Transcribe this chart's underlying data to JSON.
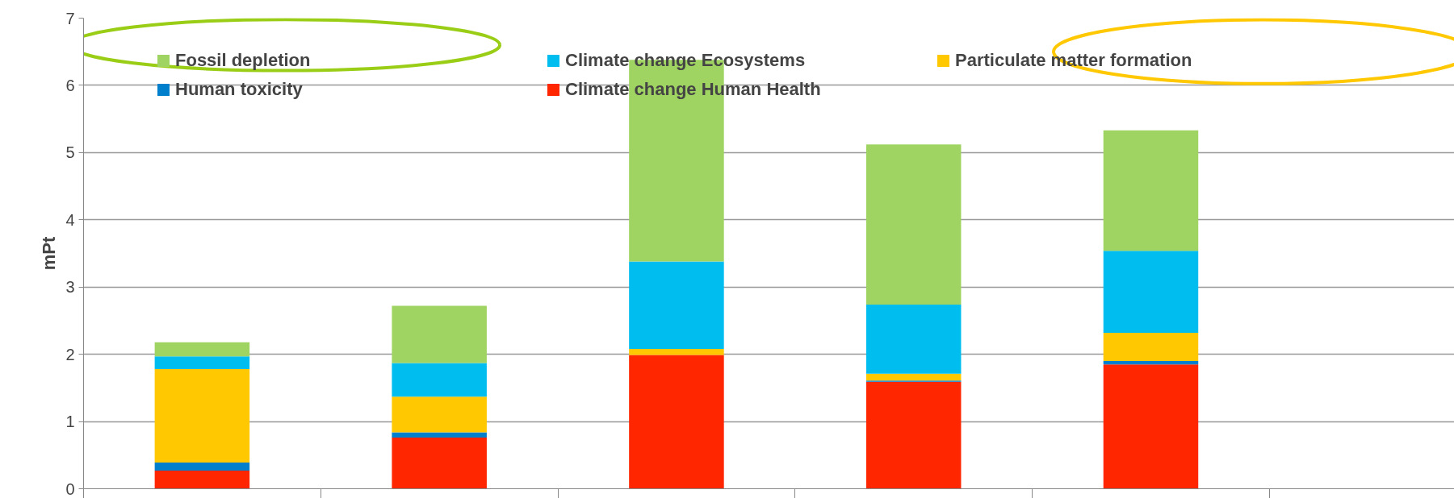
{
  "chart_data": {
    "type": "bar",
    "stacked": true,
    "ylabel": "mPt",
    "categories": [
      null,
      null,
      null,
      null,
      null
    ],
    "series": [
      {
        "name": "Climate change Human Health",
        "color": "#ff2600",
        "values": [
          0.27,
          0.76,
          1.99,
          1.59,
          1.85
        ]
      },
      {
        "name": "Human toxicity",
        "color": "#0080cc",
        "values": [
          0.12,
          0.08,
          0.0,
          0.02,
          0.05
        ]
      },
      {
        "name": "Particulate matter formation",
        "color": "#ffc800",
        "values": [
          1.39,
          0.53,
          0.09,
          0.1,
          0.42
        ]
      },
      {
        "name": "Climate change Ecosystems",
        "color": "#00bdf0",
        "values": [
          0.19,
          0.5,
          1.3,
          1.03,
          1.22
        ]
      },
      {
        "name": "Fossil depletion",
        "color": "#a0d462",
        "values": [
          0.21,
          0.85,
          3.0,
          2.38,
          1.79
        ]
      }
    ],
    "ylim": [
      0,
      7
    ],
    "yticks": [
      0,
      1,
      2,
      3,
      4,
      5,
      6,
      7
    ],
    "grid": "y",
    "legend": "top",
    "tick_labels": "y"
  }
}
